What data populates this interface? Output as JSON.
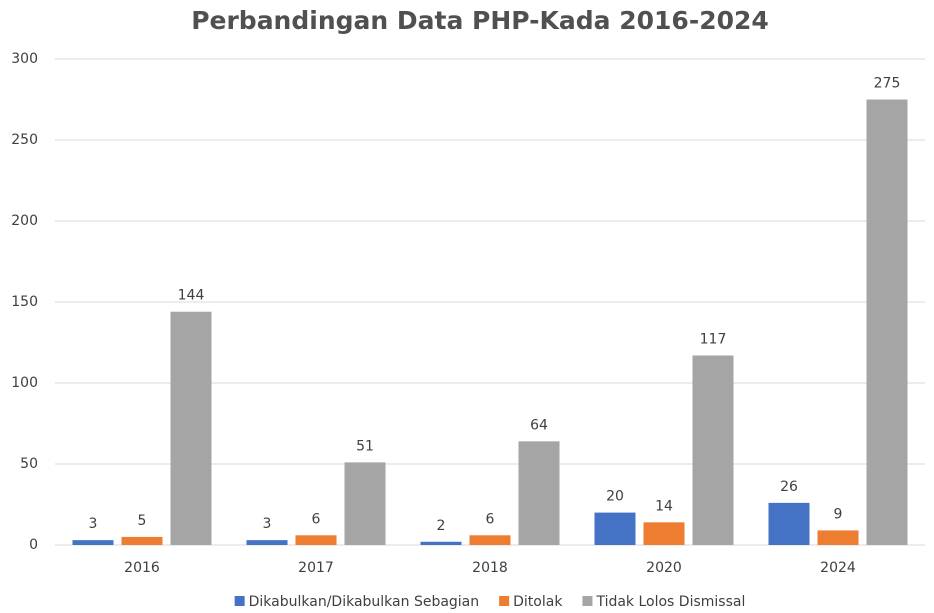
{
  "chart_data": {
    "type": "bar",
    "title": "Perbandingan Data PHP-Kada 2016-2024",
    "categories": [
      "2016",
      "2017",
      "2018",
      "2020",
      "2024"
    ],
    "series": [
      {
        "name": "Dikabulkan/Dikabulkan Sebagian",
        "color": "#4472c4",
        "values": [
          3,
          3,
          2,
          20,
          26
        ]
      },
      {
        "name": "Ditolak",
        "color": "#ed7d31",
        "values": [
          5,
          6,
          6,
          14,
          9
        ]
      },
      {
        "name": "Tidak Lolos Dismissal",
        "color": "#a5a5a5",
        "values": [
          144,
          51,
          64,
          117,
          275
        ]
      }
    ],
    "ylim": [
      0,
      300
    ],
    "yticks": [
      0,
      50,
      100,
      150,
      200,
      250,
      300
    ],
    "grid": true,
    "legend": "bottom"
  }
}
